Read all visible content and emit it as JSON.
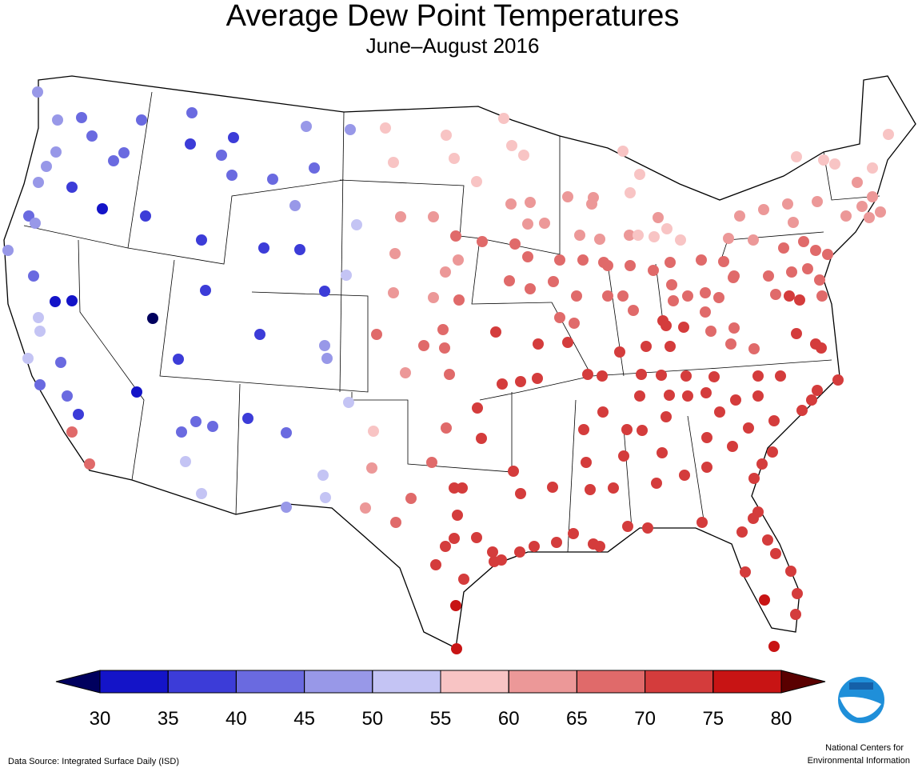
{
  "header": {
    "title": "Average Dew Point Temperatures",
    "subtitle": "June–August 2016"
  },
  "legend": {
    "ticks": [
      30,
      35,
      40,
      45,
      50,
      55,
      60,
      65,
      70,
      75,
      80
    ],
    "colors": [
      "#00005e",
      "#1414c8",
      "#3c3cd8",
      "#6a6ae0",
      "#9898e8",
      "#c4c4f4",
      "#f8c4c4",
      "#ec9898",
      "#e06a6a",
      "#d43c3c",
      "#c81414",
      "#5a0000"
    ]
  },
  "stations": [
    48,
    48,
    42,
    40,
    42,
    42,
    38,
    38,
    40,
    40,
    40,
    48,
    42,
    48,
    40,
    40,
    48,
    48,
    48,
    38,
    33,
    38,
    42,
    45,
    48,
    37,
    36,
    38,
    45,
    50,
    50,
    38,
    42,
    32,
    32,
    28,
    37,
    37,
    45,
    48,
    50,
    50,
    50,
    42,
    42,
    42,
    38,
    33,
    37,
    37,
    40,
    40,
    40,
    40,
    50,
    50,
    50,
    50,
    45,
    50,
    65,
    65,
    58,
    58,
    58,
    58,
    60,
    64,
    65,
    60,
    63,
    64,
    65,
    64,
    65,
    67,
    68,
    64,
    67,
    65,
    58,
    68,
    70,
    72,
    70,
    70,
    62,
    64,
    66,
    68,
    68,
    70,
    70,
    70,
    72,
    72,
    72,
    72,
    71,
    70,
    72,
    74,
    74,
    76,
    78,
    72,
    72,
    72,
    58,
    58,
    58,
    58,
    62,
    64,
    64,
    62,
    60,
    64,
    62,
    58,
    58,
    58,
    64,
    64,
    60,
    58,
    58,
    58,
    58,
    62,
    64,
    65,
    65,
    67,
    67,
    67,
    67,
    67,
    67,
    67,
    68,
    68,
    68,
    68,
    68,
    68,
    67,
    67,
    67,
    67,
    66,
    66,
    67,
    67,
    67,
    67,
    66,
    68,
    66,
    68,
    70,
    70,
    70,
    68,
    67,
    68,
    70,
    70,
    70,
    70,
    72,
    72,
    70,
    70,
    70,
    70,
    70,
    70,
    70,
    70,
    70,
    70,
    70,
    60,
    60,
    60,
    60,
    60,
    58,
    58,
    58,
    60,
    58,
    58,
    62,
    60,
    60,
    60,
    60,
    64,
    64,
    65,
    66,
    66,
    66,
    66,
    66,
    66,
    66,
    68,
    68,
    70,
    70,
    68,
    70,
    72,
    72,
    74,
    74,
    74,
    72,
    70,
    70,
    70,
    70,
    70,
    70,
    72,
    72,
    74,
    74,
    74,
    74,
    74,
    74,
    74,
    74,
    74,
    74,
    74,
    75,
    74,
    78,
    70,
    72,
    70,
    70,
    70,
    70,
    72,
    70,
    70,
    70,
    70,
    72,
    72,
    70,
    74,
    74,
    74,
    74,
    74,
    74,
    74,
    74
  ],
  "footer": {
    "source": "Data Source: Integrated Surface Daily (ISD)",
    "org_line1": "National Centers for",
    "org_line2": "Environmental Information"
  }
}
